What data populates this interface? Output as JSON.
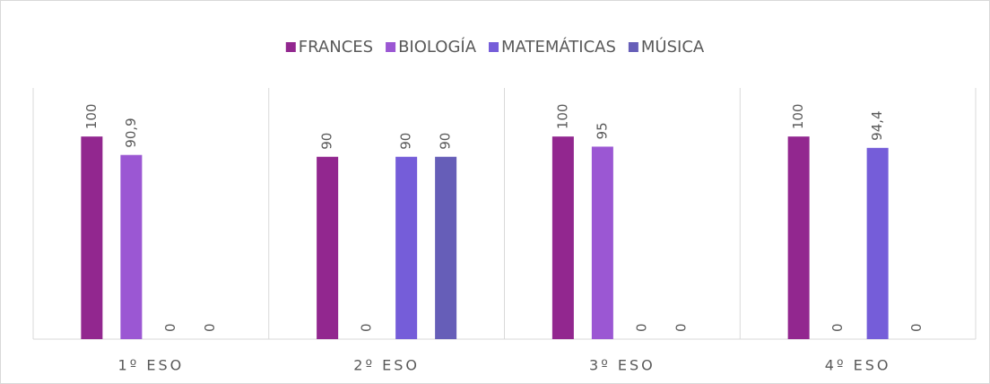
{
  "chart_data": {
    "type": "bar",
    "categories": [
      "1º ESO",
      "2º ESO",
      "3º ESO",
      "4º ESO"
    ],
    "series": [
      {
        "name": "FRANCES",
        "color": "#92278f",
        "values": [
          100,
          90,
          100,
          100
        ],
        "value_labels": [
          "100",
          "90",
          "100",
          "100"
        ]
      },
      {
        "name": "BIOLOGÍA",
        "color": "#9b57d3",
        "values": [
          90.9,
          0,
          95,
          0
        ],
        "value_labels": [
          "90,9",
          "0",
          "95",
          "0"
        ]
      },
      {
        "name": "MATEMÁTICAS",
        "color": "#755dd9",
        "values": [
          0,
          90,
          0,
          94.4
        ],
        "value_labels": [
          "0",
          "90",
          "0",
          "94,4"
        ]
      },
      {
        "name": "MÚSICA",
        "color": "#665eb8",
        "values": [
          0,
          90,
          0,
          0
        ],
        "value_labels": [
          "0",
          "90",
          "0",
          "0"
        ]
      }
    ],
    "ylim": [
      0,
      120
    ],
    "legend": "top"
  }
}
